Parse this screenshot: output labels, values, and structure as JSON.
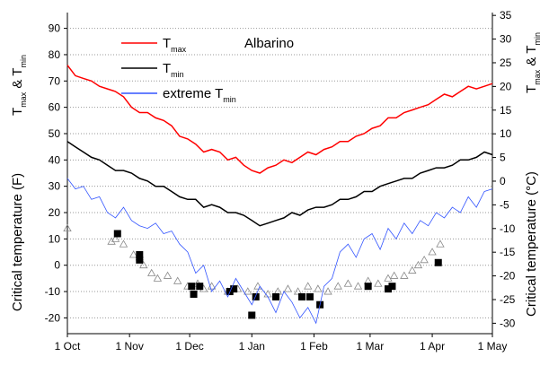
{
  "chart_data": {
    "type": "line",
    "annotation": "Albarino",
    "ylabel_top": [
      "T",
      "max",
      " & T",
      "min"
    ],
    "ylabel": "Critical temperature (F)",
    "y2label_top": [
      "T",
      "max",
      " & T",
      "min"
    ],
    "y2label": "Critical temperature (°C)",
    "xlim": [
      0,
      212
    ],
    "xticks": [
      {
        "value": 0,
        "label": "1 Oct"
      },
      {
        "value": 31,
        "label": "1 Nov"
      },
      {
        "value": 61,
        "label": "1 Dec"
      },
      {
        "value": 92,
        "label": "1 Jan"
      },
      {
        "value": 123,
        "label": "1 Feb"
      },
      {
        "value": 151,
        "label": "1 Mar"
      },
      {
        "value": 182,
        "label": "1 Apr"
      },
      {
        "value": 212,
        "label": "1 May"
      }
    ],
    "ylim": [
      -26,
      96
    ],
    "yticks": [
      -20,
      -10,
      0,
      10,
      20,
      30,
      40,
      50,
      60,
      70,
      80,
      90
    ],
    "y2lim": [
      -32.2,
      35.6
    ],
    "y2ticks": [
      -30,
      -25,
      -20,
      -15,
      -10,
      -5,
      0,
      5,
      10,
      15,
      20,
      25,
      30,
      35
    ],
    "grid": true,
    "x": [
      0,
      4,
      8,
      12,
      16,
      20,
      24,
      28,
      32,
      36,
      40,
      44,
      48,
      52,
      56,
      60,
      64,
      68,
      72,
      76,
      80,
      84,
      88,
      92,
      96,
      100,
      104,
      108,
      112,
      116,
      120,
      124,
      128,
      132,
      136,
      140,
      144,
      148,
      152,
      156,
      160,
      164,
      168,
      172,
      176,
      180,
      184,
      188,
      192,
      196,
      200,
      204,
      208,
      212
    ],
    "series": [
      {
        "name": "T",
        "name_sub": "max",
        "color": "#ff0000",
        "width": 1.5,
        "values": [
          76,
          72,
          71,
          70,
          68,
          67,
          66,
          64,
          60,
          58,
          58,
          56,
          55,
          53,
          49,
          48,
          46,
          43,
          44,
          43,
          40,
          41,
          38,
          36,
          35,
          37,
          38,
          40,
          39,
          41,
          43,
          42,
          44,
          45,
          47,
          47,
          49,
          50,
          52,
          53,
          56,
          56,
          58,
          59,
          60,
          61,
          63,
          65,
          64,
          66,
          68,
          67,
          68,
          69
        ]
      },
      {
        "name": "T",
        "name_sub": "min",
        "color": "#000000",
        "width": 1.5,
        "values": [
          47,
          45,
          43,
          41,
          40,
          38,
          36,
          36,
          35,
          33,
          32,
          30,
          30,
          28,
          26,
          25,
          25,
          22,
          23,
          22,
          20,
          20,
          19,
          17,
          15,
          16,
          17,
          18,
          20,
          19,
          21,
          22,
          22,
          23,
          25,
          25,
          26,
          28,
          28,
          30,
          31,
          32,
          33,
          33,
          35,
          36,
          37,
          37,
          38,
          40,
          40,
          41,
          43,
          42
        ]
      },
      {
        "name": "extreme T",
        "name_sub": "min",
        "color": "#3355ff",
        "width": 0.8,
        "values": [
          33,
          29,
          30,
          25,
          26,
          20,
          18,
          22,
          17,
          15,
          14,
          16,
          12,
          13,
          8,
          5,
          -3,
          0,
          -10,
          -6,
          -12,
          -5,
          -10,
          -15,
          -8,
          -12,
          -18,
          -10,
          -14,
          -20,
          -16,
          -22,
          -8,
          -5,
          5,
          8,
          3,
          10,
          12,
          6,
          14,
          10,
          16,
          12,
          17,
          15,
          20,
          18,
          22,
          20,
          26,
          22,
          28,
          29
        ]
      }
    ],
    "markers": [
      {
        "shape": "triangle",
        "color": "#888888",
        "x": [
          0,
          22,
          24,
          28,
          33,
          36,
          38,
          42,
          45,
          50,
          55,
          60,
          65,
          68,
          72,
          80,
          85,
          90,
          95,
          100,
          105,
          110,
          115,
          120,
          125,
          130,
          135,
          140,
          145,
          150,
          155,
          160,
          163,
          168,
          172,
          175,
          178,
          182,
          186
        ],
        "values": [
          14,
          9,
          10,
          8,
          4,
          3,
          0,
          -3,
          -5,
          -4,
          -6,
          -8,
          -7,
          -9,
          -8,
          -10,
          -9,
          -10,
          -8,
          -11,
          -10,
          -9,
          -10,
          -8,
          -9,
          -10,
          -8,
          -7,
          -8,
          -6,
          -7,
          -5,
          -4,
          -4,
          -2,
          0,
          2,
          5,
          8
        ]
      },
      {
        "shape": "square",
        "color": "#000000",
        "x": [
          25,
          36,
          36,
          62,
          63,
          66,
          81,
          83,
          92,
          94,
          104,
          117,
          121,
          126,
          150,
          160,
          162,
          185
        ],
        "values": [
          12,
          4,
          2,
          -8,
          -11,
          -8,
          -10,
          -9,
          -19,
          -12,
          -12,
          -12,
          -12,
          -15,
          -8,
          -9,
          -8,
          1
        ]
      }
    ]
  }
}
